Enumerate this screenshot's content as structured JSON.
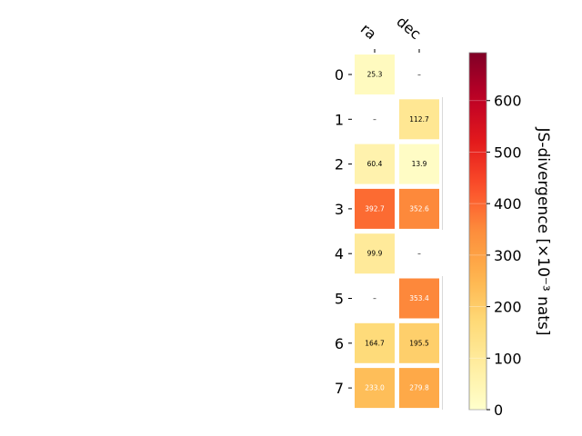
{
  "chart_data": {
    "type": "heatmap",
    "columns": [
      "ra",
      "dec"
    ],
    "rows": [
      "0",
      "1",
      "2",
      "3",
      "4",
      "5",
      "6",
      "7"
    ],
    "values": [
      [
        25.3,
        null
      ],
      [
        null,
        112.7
      ],
      [
        60.4,
        13.9
      ],
      [
        392.7,
        352.6
      ],
      [
        99.9,
        null
      ],
      [
        null,
        353.4
      ],
      [
        164.7,
        195.5
      ],
      [
        233.0,
        279.8
      ]
    ],
    "cell_labels": [
      [
        "25.3",
        "–"
      ],
      [
        "–",
        "112.7"
      ],
      [
        "60.4",
        "13.9"
      ],
      [
        "392.7",
        "352.6"
      ],
      [
        "99.9",
        "–"
      ],
      [
        "–",
        "353.4"
      ],
      [
        "164.7",
        "195.5"
      ],
      [
        "233.0",
        "279.8"
      ]
    ],
    "missing_label": "–",
    "colorbar": {
      "label": "JS-divergence [×10⁻³ nats]",
      "range": [
        0,
        693
      ],
      "ticks": [
        0,
        100,
        200,
        300,
        400,
        500,
        600
      ],
      "colormap": "YlOrRd"
    }
  },
  "colors": {
    "background": "#ffffff",
    "cell_border": "#ffffff",
    "separator": "#d9d9d9",
    "text_dark": "#000000",
    "text_light": "#ffffff"
  }
}
